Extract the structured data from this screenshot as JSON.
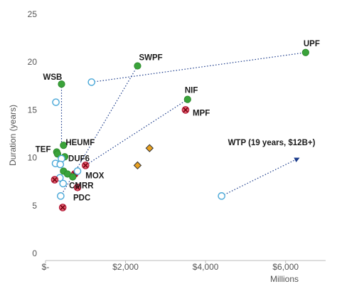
{
  "chart_data": {
    "type": "scatter",
    "title": "",
    "xlabel": "Millions",
    "ylabel": "Duration (years)",
    "xlim": [
      0,
      7000
    ],
    "ylim": [
      0,
      25
    ],
    "x_ticks": [
      0,
      2000,
      4000,
      6000
    ],
    "x_tick_labels": [
      "$-",
      "$2,000",
      "$4,000",
      "$6,000"
    ],
    "y_ticks": [
      0,
      5,
      10,
      15,
      20,
      25
    ],
    "y_tick_labels": [
      "0",
      "5",
      "10",
      "15",
      "20",
      "25"
    ],
    "grid": false,
    "legend": "none",
    "marker_styles": {
      "green_dot": {
        "fill": "#3aa33a",
        "stroke": "#2e8b2e"
      },
      "open_circle": {
        "fill": "#ffffff",
        "stroke": "#4aa8d8"
      },
      "red_x": {
        "fill": "#e06070",
        "stroke": "#b01030"
      },
      "orange_diamond": {
        "fill": "#e8a020",
        "stroke": "#333333"
      }
    },
    "points": [
      {
        "label": "UPF",
        "x": 6500,
        "y": 21,
        "style": "green_dot"
      },
      {
        "label": "SWPF",
        "x": 2300,
        "y": 19.6,
        "style": "green_dot"
      },
      {
        "label": "WSB",
        "x": 400,
        "y": 17.7,
        "style": "green_dot"
      },
      {
        "label": "NIF",
        "x": 3550,
        "y": 16.1,
        "style": "green_dot"
      },
      {
        "label": "MPF",
        "x": 3500,
        "y": 15,
        "style": "red_x"
      },
      {
        "label": "TEF",
        "x": 280,
        "y": 10.6,
        "style": "green_dot"
      },
      {
        "label": "HEUMF",
        "x": 450,
        "y": 11.3,
        "style": "green_dot"
      },
      {
        "label": "DUF6",
        "x": 480,
        "y": 10.1,
        "style": "green_dot"
      },
      {
        "label": "MOX",
        "x": 1000,
        "y": 9.2,
        "style": "red_x"
      },
      {
        "label": "CMRR",
        "x": 730,
        "y": 8.3,
        "style": "red_x"
      },
      {
        "label": "PDC",
        "x": 800,
        "y": 6.9,
        "style": "red_x"
      },
      {
        "label": "",
        "x": 1150,
        "y": 17.9,
        "style": "open_circle"
      },
      {
        "label": "",
        "x": 260,
        "y": 15.8,
        "style": "open_circle"
      },
      {
        "label": "",
        "x": 300,
        "y": 10.4,
        "style": "green_dot"
      },
      {
        "label": "",
        "x": 400,
        "y": 9.9,
        "style": "open_circle"
      },
      {
        "label": "",
        "x": 250,
        "y": 9.4,
        "style": "open_circle"
      },
      {
        "label": "",
        "x": 370,
        "y": 9.3,
        "style": "open_circle"
      },
      {
        "label": "",
        "x": 450,
        "y": 8.6,
        "style": "green_dot"
      },
      {
        "label": "",
        "x": 550,
        "y": 8.3,
        "style": "green_dot"
      },
      {
        "label": "",
        "x": 680,
        "y": 8.0,
        "style": "green_dot"
      },
      {
        "label": "",
        "x": 360,
        "y": 7.9,
        "style": "open_circle"
      },
      {
        "label": "",
        "x": 230,
        "y": 7.7,
        "style": "red_x"
      },
      {
        "label": "",
        "x": 440,
        "y": 7.3,
        "style": "open_circle"
      },
      {
        "label": "",
        "x": 800,
        "y": 8.6,
        "style": "open_circle"
      },
      {
        "label": "",
        "x": 380,
        "y": 6.0,
        "style": "open_circle"
      },
      {
        "label": "",
        "x": 430,
        "y": 4.8,
        "style": "red_x"
      },
      {
        "label": "",
        "x": 2300,
        "y": 9.2,
        "style": "orange_diamond"
      },
      {
        "label": "",
        "x": 2600,
        "y": 11.0,
        "style": "orange_diamond"
      },
      {
        "label": "",
        "x": 4400,
        "y": 6.0,
        "style": "open_circle"
      }
    ],
    "connectors": [
      {
        "from": [
          1150,
          17.9
        ],
        "to": [
          6500,
          21
        ]
      },
      {
        "from": [
          400,
          17.7
        ],
        "to": [
          400,
          11.3
        ]
      },
      {
        "from": [
          2300,
          19.6
        ],
        "to": [
          380,
          6.0
        ]
      },
      {
        "from": [
          3550,
          16.1
        ],
        "to": [
          1000,
          9.2
        ]
      },
      {
        "from": [
          4400,
          6.0
        ],
        "to": [
          6350,
          10.0
        ]
      }
    ],
    "annotations": [
      {
        "text": "WTP (19 years, $12B+)",
        "x": 5650,
        "y": 11.3
      }
    ]
  }
}
